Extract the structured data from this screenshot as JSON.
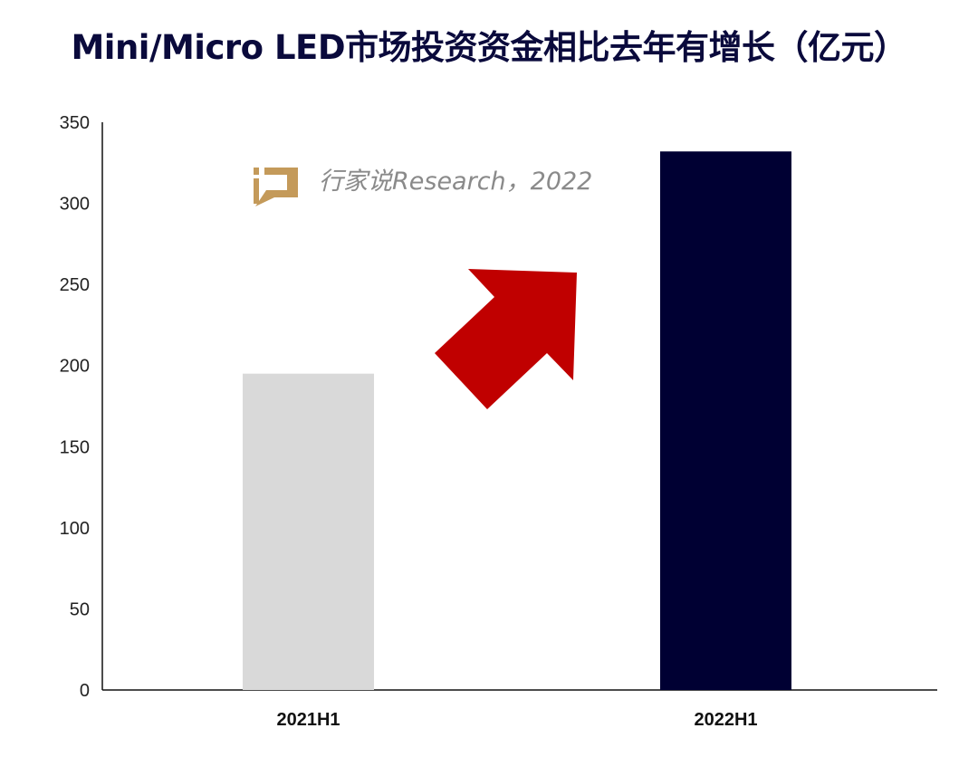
{
  "chart_data": {
    "type": "bar",
    "title": "Mini/Micro LED市场投资资金相比去年有增长（亿元）",
    "categories": [
      "2021H1",
      "2022H1"
    ],
    "values": [
      195,
      332
    ],
    "colors": [
      "#d9d9d9",
      "#000033"
    ],
    "ylim": [
      0,
      350
    ],
    "yticks": [
      0,
      50,
      100,
      150,
      200,
      250,
      300,
      350
    ],
    "grid": false,
    "annotation": "red up-right arrow indicating growth",
    "arrow_color": "#c00000"
  },
  "watermark": {
    "text": "行家说Research，2022",
    "logo_color": "#c49a5a"
  }
}
